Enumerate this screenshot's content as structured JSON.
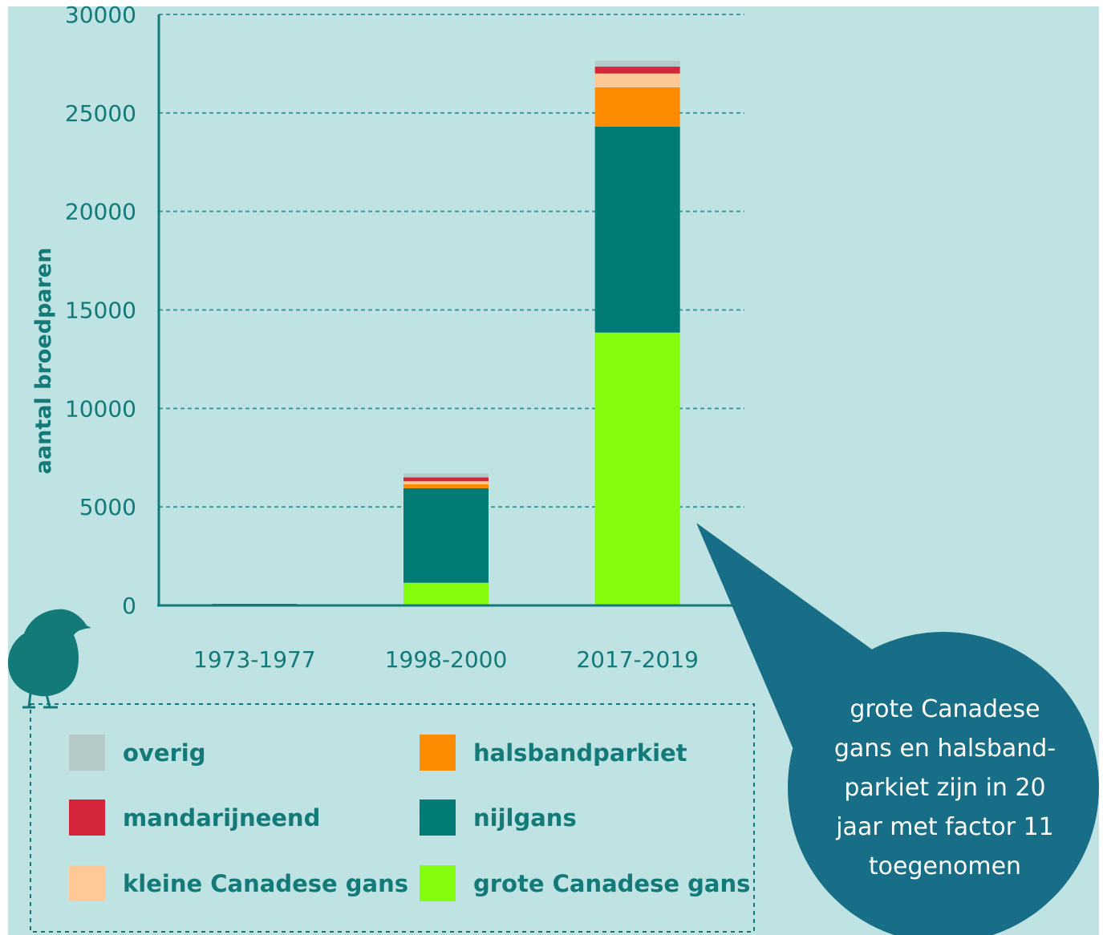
{
  "chart_data": {
    "type": "bar",
    "stacked": true,
    "title": "",
    "xlabel": "",
    "ylabel": "aantal broedparen",
    "ylim": [
      0,
      30000
    ],
    "yticks": [
      0,
      5000,
      10000,
      15000,
      20000,
      25000,
      30000
    ],
    "categories": [
      "1973-1977",
      "1998-2000",
      "2017-2019"
    ],
    "grid": "horizontal dashed",
    "legend_position": "bottom",
    "series": [
      {
        "name": "grote Canadese gans",
        "color": "#84fc0d",
        "values": [
          30,
          1150,
          13850
        ]
      },
      {
        "name": "nijlgans",
        "color": "#017b76",
        "values": [
          50,
          4800,
          10450
        ]
      },
      {
        "name": "halsbandparkiet",
        "color": "#ff8c00",
        "values": [
          0,
          200,
          2000
        ]
      },
      {
        "name": "kleine Canadese gans",
        "color": "#fec996",
        "values": [
          0,
          150,
          700
        ]
      },
      {
        "name": "mandarijneend",
        "color": "#d4253a",
        "values": [
          0,
          200,
          350
        ]
      },
      {
        "name": "overig",
        "color": "#b5c9c8",
        "values": [
          0,
          200,
          300
        ]
      }
    ],
    "legend_order": [
      "overig",
      "halsbandparkiet",
      "mandarijneend",
      "nijlgans",
      "kleine Canadese gans",
      "grote Canadese gans"
    ],
    "annotation": {
      "lines": [
        "grote Canadese",
        "gans en halsband-",
        "parkiet zijn in 20",
        "jaar met factor 11",
        "toegenomen"
      ],
      "points_to": "2017-2019",
      "color": "#176e86"
    }
  },
  "decoration": {
    "icon": "crow-silhouette",
    "color": "#137a77"
  }
}
